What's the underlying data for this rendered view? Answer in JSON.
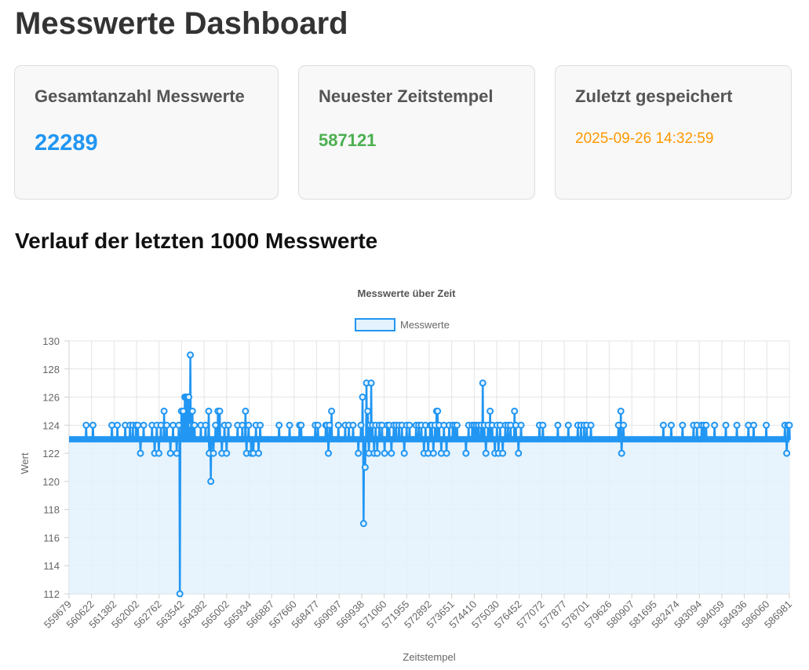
{
  "page": {
    "title": "Messwerte Dashboard",
    "section_title": "Verlauf der letzten 1000 Messwerte"
  },
  "cards": {
    "total": {
      "label": "Gesamtanzahl Messwerte",
      "value": "22289"
    },
    "latest": {
      "label": "Neuester Zeitstempel",
      "value": "587121"
    },
    "saved": {
      "label": "Zuletzt gespeichert",
      "value": "2025-09-26 14:32:59"
    }
  },
  "colors": {
    "accent": "#2196F3",
    "green": "#4CAF50",
    "orange": "#FF9800",
    "fill": "#E3F2FD"
  },
  "chart_data": {
    "type": "line",
    "title": "Messwerte über Zeit",
    "legend": "Messwerte",
    "legend_position": "top",
    "xlabel": "Zeitstempel",
    "ylabel": "Wert",
    "ylim": [
      112,
      130
    ],
    "yticks": [
      112,
      114,
      116,
      118,
      120,
      122,
      124,
      126,
      128,
      130
    ],
    "xlim": [
      559679,
      587121
    ],
    "xticks": [
      "559679",
      "560622",
      "561382",
      "562002",
      "562762",
      "563542",
      "564382",
      "565002",
      "565934",
      "566887",
      "567660",
      "568477",
      "569097",
      "569938",
      "571060",
      "571955",
      "572892",
      "573651",
      "574410",
      "575030",
      "576452",
      "577072",
      "577877",
      "578701",
      "579626",
      "580907",
      "581695",
      "582474",
      "583094",
      "584059",
      "584936",
      "586060",
      "586981"
    ],
    "baseline": 123,
    "series": [
      {
        "name": "Messwerte",
        "points": [
          [
            560330,
            124
          ],
          [
            560590,
            124
          ],
          [
            561310,
            124
          ],
          [
            561520,
            124
          ],
          [
            561820,
            124
          ],
          [
            562000,
            124
          ],
          [
            562110,
            124
          ],
          [
            562230,
            124
          ],
          [
            562300,
            124
          ],
          [
            562400,
            122
          ],
          [
            562520,
            124
          ],
          [
            562840,
            124
          ],
          [
            562940,
            122
          ],
          [
            563020,
            124
          ],
          [
            563100,
            122
          ],
          [
            563180,
            124
          ],
          [
            563300,
            125
          ],
          [
            563400,
            124
          ],
          [
            563540,
            122
          ],
          [
            563640,
            124
          ],
          [
            563780,
            122
          ],
          [
            563860,
            124
          ],
          [
            563960,
            125
          ],
          [
            564030,
            125
          ],
          [
            564090,
            126
          ],
          [
            564130,
            126
          ],
          [
            564190,
            126
          ],
          [
            564240,
            126
          ],
          [
            564300,
            129
          ],
          [
            564330,
            124
          ],
          [
            564380,
            125
          ],
          [
            564420,
            124
          ],
          [
            564460,
            124
          ],
          [
            563900,
            112
          ],
          [
            564700,
            124
          ],
          [
            564880,
            124
          ],
          [
            565000,
            125
          ],
          [
            565020,
            122
          ],
          [
            565080,
            120
          ],
          [
            565180,
            122
          ],
          [
            565260,
            124
          ],
          [
            565350,
            125
          ],
          [
            565420,
            125
          ],
          [
            565500,
            122
          ],
          [
            565600,
            124
          ],
          [
            565680,
            122
          ],
          [
            565750,
            124
          ],
          [
            566100,
            124
          ],
          [
            566280,
            124
          ],
          [
            566400,
            125
          ],
          [
            566440,
            122
          ],
          [
            566520,
            124
          ],
          [
            566620,
            122
          ],
          [
            566700,
            122
          ],
          [
            566800,
            124
          ],
          [
            566900,
            122
          ],
          [
            566960,
            124
          ],
          [
            567680,
            124
          ],
          [
            568080,
            124
          ],
          [
            568460,
            124
          ],
          [
            568520,
            124
          ],
          [
            569060,
            124
          ],
          [
            569160,
            124
          ],
          [
            569460,
            124
          ],
          [
            569500,
            124
          ],
          [
            569560,
            122
          ],
          [
            569600,
            124
          ],
          [
            569680,
            125
          ],
          [
            569940,
            124
          ],
          [
            570200,
            124
          ],
          [
            570340,
            124
          ],
          [
            570500,
            124
          ],
          [
            570700,
            122
          ],
          [
            570800,
            124
          ],
          [
            570860,
            126
          ],
          [
            570900,
            117
          ],
          [
            570960,
            121
          ],
          [
            571010,
            127
          ],
          [
            571060,
            125
          ],
          [
            571100,
            122
          ],
          [
            571140,
            124
          ],
          [
            571190,
            127
          ],
          [
            571240,
            124
          ],
          [
            571300,
            122
          ],
          [
            571360,
            124
          ],
          [
            571420,
            122
          ],
          [
            571500,
            124
          ],
          [
            571600,
            124
          ],
          [
            571700,
            122
          ],
          [
            571800,
            124
          ],
          [
            571880,
            124
          ],
          [
            571960,
            122
          ],
          [
            572050,
            124
          ],
          [
            572140,
            124
          ],
          [
            572250,
            124
          ],
          [
            572360,
            124
          ],
          [
            572450,
            122
          ],
          [
            572540,
            124
          ],
          [
            572650,
            124
          ],
          [
            572900,
            124
          ],
          [
            573000,
            124
          ],
          [
            573100,
            124
          ],
          [
            573200,
            122
          ],
          [
            573260,
            124
          ],
          [
            573360,
            122
          ],
          [
            573440,
            124
          ],
          [
            573500,
            124
          ],
          [
            573560,
            122
          ],
          [
            573620,
            124
          ],
          [
            573680,
            125
          ],
          [
            573720,
            125
          ],
          [
            573780,
            124
          ],
          [
            573860,
            122
          ],
          [
            573960,
            124
          ],
          [
            574060,
            122
          ],
          [
            574160,
            124
          ],
          [
            574300,
            124
          ],
          [
            574380,
            124
          ],
          [
            574460,
            124
          ],
          [
            574800,
            122
          ],
          [
            574900,
            124
          ],
          [
            575040,
            124
          ],
          [
            575120,
            124
          ],
          [
            575200,
            124
          ],
          [
            575280,
            124
          ],
          [
            575380,
            124
          ],
          [
            575440,
            127
          ],
          [
            575500,
            124
          ],
          [
            575560,
            122
          ],
          [
            575640,
            124
          ],
          [
            575720,
            125
          ],
          [
            575800,
            124
          ],
          [
            575900,
            122
          ],
          [
            575980,
            124
          ],
          [
            576040,
            122
          ],
          [
            576100,
            124
          ],
          [
            576200,
            122
          ],
          [
            576300,
            124
          ],
          [
            576400,
            124
          ],
          [
            576500,
            124
          ],
          [
            576650,
            125
          ],
          [
            576700,
            124
          ],
          [
            576800,
            122
          ],
          [
            576900,
            124
          ],
          [
            577600,
            124
          ],
          [
            577730,
            124
          ],
          [
            578300,
            124
          ],
          [
            578700,
            124
          ],
          [
            579060,
            124
          ],
          [
            579180,
            124
          ],
          [
            579300,
            124
          ],
          [
            579400,
            124
          ],
          [
            579560,
            124
          ],
          [
            580610,
            124
          ],
          [
            580700,
            125
          ],
          [
            580730,
            122
          ],
          [
            580800,
            124
          ],
          [
            582320,
            124
          ],
          [
            582620,
            124
          ],
          [
            583050,
            124
          ],
          [
            583470,
            124
          ],
          [
            583600,
            124
          ],
          [
            583780,
            124
          ],
          [
            583860,
            124
          ],
          [
            583950,
            124
          ],
          [
            584270,
            124
          ],
          [
            584700,
            124
          ],
          [
            585120,
            124
          ],
          [
            585560,
            124
          ],
          [
            585760,
            124
          ],
          [
            586240,
            124
          ],
          [
            586950,
            124
          ],
          [
            587020,
            122
          ],
          [
            587060,
            124
          ],
          [
            587121,
            124
          ]
        ]
      }
    ]
  }
}
